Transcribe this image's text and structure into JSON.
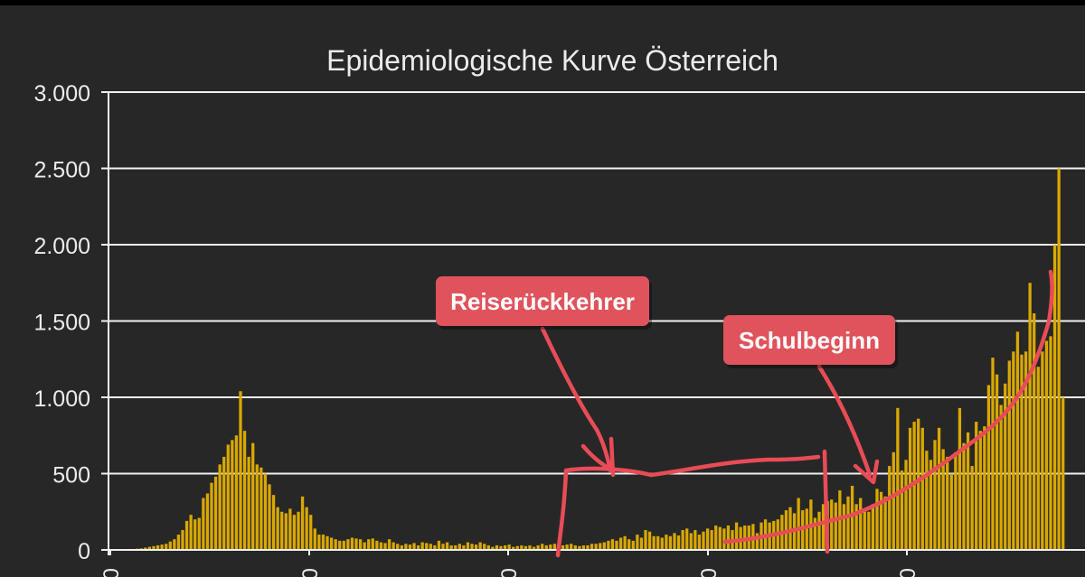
{
  "chart_data": {
    "type": "bar",
    "title": "Epidemiologische Kurve Österreich",
    "xlabel": "",
    "ylabel": "",
    "ylim": [
      0,
      3000
    ],
    "y_ticks": [
      0,
      500,
      1000,
      1500,
      2000,
      2500,
      3000
    ],
    "y_tick_labels": [
      "0",
      "500",
      "1.000",
      "1.500",
      "2.000",
      "2.500",
      "3.000"
    ],
    "x_tick_labels": [
      "0",
      "0",
      "0",
      "0",
      "0"
    ],
    "grid": true,
    "bar_color": "#d9a800",
    "values": [
      5,
      5,
      5,
      5,
      5,
      5,
      8,
      10,
      15,
      20,
      25,
      30,
      35,
      40,
      55,
      70,
      100,
      130,
      190,
      230,
      200,
      210,
      340,
      370,
      440,
      480,
      560,
      610,
      690,
      720,
      750,
      1040,
      780,
      610,
      700,
      560,
      540,
      500,
      430,
      360,
      280,
      250,
      240,
      270,
      230,
      250,
      350,
      280,
      230,
      140,
      100,
      100,
      90,
      80,
      70,
      60,
      60,
      70,
      80,
      75,
      70,
      50,
      70,
      75,
      60,
      50,
      45,
      70,
      50,
      40,
      30,
      40,
      35,
      45,
      30,
      50,
      45,
      40,
      30,
      60,
      40,
      50,
      30,
      30,
      40,
      30,
      50,
      40,
      35,
      50,
      40,
      30,
      20,
      30,
      25,
      30,
      35,
      20,
      25,
      30,
      25,
      30,
      20,
      30,
      40,
      30,
      35,
      40,
      25,
      30,
      35,
      40,
      30,
      25,
      30,
      30,
      40,
      40,
      45,
      50,
      60,
      70,
      60,
      80,
      90,
      70,
      60,
      100,
      80,
      130,
      120,
      90,
      90,
      80,
      100,
      90,
      110,
      95,
      130,
      140,
      110,
      130,
      100,
      120,
      140,
      130,
      160,
      150,
      140,
      160,
      130,
      180,
      150,
      160,
      160,
      170,
      110,
      180,
      200,
      180,
      190,
      200,
      230,
      260,
      280,
      240,
      340,
      260,
      270,
      330,
      210,
      250,
      300,
      320,
      330,
      310,
      390,
      300,
      350,
      420,
      300,
      340,
      270,
      250,
      300,
      400,
      380,
      350,
      550,
      640,
      930,
      520,
      590,
      800,
      840,
      860,
      800,
      650,
      590,
      720,
      800,
      660,
      610,
      500,
      640,
      930,
      700,
      770,
      550,
      840,
      780,
      810,
      1080,
      1260,
      1150,
      950,
      1090,
      1240,
      1300,
      1430,
      1280,
      1300,
      1750,
      1550,
      1200,
      1300,
      1370,
      1400,
      2000,
      2500,
      1000
    ],
    "annotations": [
      {
        "text": "Reiserückkehrer"
      },
      {
        "text": "Schulbeginn"
      }
    ]
  },
  "colors": {
    "background": "#272727",
    "outer_border": "#000000",
    "text": "#ebebeb",
    "grid": "#f0f0f0",
    "bar": "#d9a800",
    "annotation_fill": "#e0535c",
    "annotation_text": "#ffffff",
    "scribble": "#e84c57"
  }
}
